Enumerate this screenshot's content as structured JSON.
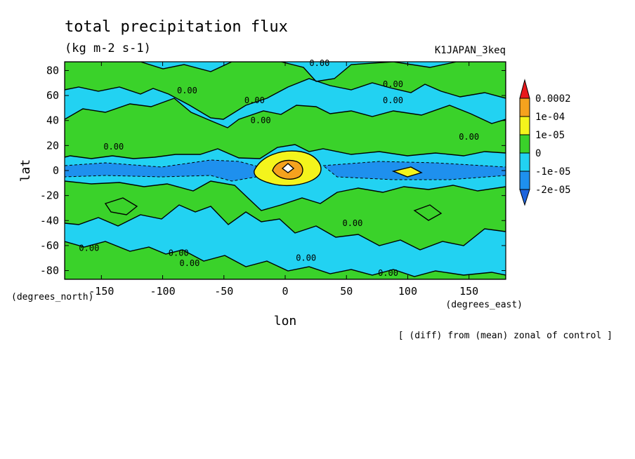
{
  "chart_data": {
    "type": "heatmap",
    "title": "total precipitation flux",
    "subtitle": "(kg m-2 s-1)",
    "run_label": "K1JAPAN_3keq",
    "xlabel": "lon",
    "ylabel": "lat",
    "x_units": "(degrees_east)",
    "y_units": "(degrees_north)",
    "footnote": "[ (diff) from (mean) zonal of control ]",
    "xlim": [
      -180,
      180
    ],
    "ylim": [
      -87,
      87
    ],
    "x_ticks": [
      -150,
      -100,
      -50,
      0,
      50,
      100,
      150
    ],
    "x_tick_labels": [
      "-150",
      "-100",
      "-50",
      "0",
      "50",
      "100",
      "150"
    ],
    "y_ticks": [
      80,
      60,
      40,
      20,
      0,
      -20,
      -40,
      -60,
      -80
    ],
    "y_tick_labels": [
      "80",
      "60",
      "40",
      "20",
      "0",
      "-20",
      "-40",
      "-60",
      "-80"
    ],
    "colorbar": {
      "labels": [
        "0.0002",
        "1e-04",
        "1e-05",
        "0",
        "-1e-05",
        "-2e-05"
      ],
      "colors": [
        "#e8181c",
        "#f5a21e",
        "#f4f41c",
        "#3ad22a",
        "#22d2f2",
        "#1e90ee",
        "#1e64dc"
      ]
    },
    "contour_labels": [
      {
        "text": "0.00",
        "lon": -80,
        "lat": 64
      },
      {
        "text": "0.00",
        "lon": -25,
        "lat": 56
      },
      {
        "text": "0.00",
        "lon": 28,
        "lat": 86
      },
      {
        "text": "0.00",
        "lon": 88,
        "lat": 69
      },
      {
        "text": "0.00",
        "lon": 88,
        "lat": 56
      },
      {
        "text": "0.00",
        "lon": -20,
        "lat": 40
      },
      {
        "text": "0.00",
        "lon": -140,
        "lat": 19
      },
      {
        "text": "0.00",
        "lon": 150,
        "lat": 27
      },
      {
        "text": "0.00",
        "lon": -160,
        "lat": -62
      },
      {
        "text": "0.00",
        "lon": -87,
        "lat": -66
      },
      {
        "text": "0.00",
        "lon": -78,
        "lat": -74
      },
      {
        "text": "0.00",
        "lon": 17,
        "lat": -70
      },
      {
        "text": "0.00",
        "lon": 55,
        "lat": -42
      },
      {
        "text": "0.00",
        "lon": 84,
        "lat": -82
      }
    ]
  }
}
